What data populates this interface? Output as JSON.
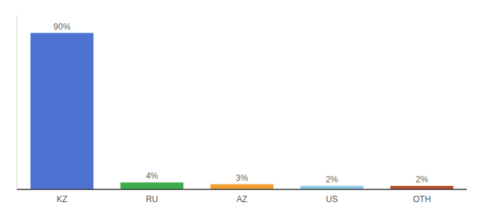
{
  "chart_data": {
    "type": "bar",
    "categories": [
      "KZ",
      "RU",
      "AZ",
      "US",
      "OTH"
    ],
    "values": [
      90,
      4,
      3,
      2,
      2
    ],
    "value_labels": [
      "90%",
      "4%",
      "3%",
      "2%",
      "2%"
    ],
    "colors": [
      "#4d72d1",
      "#3daa4c",
      "#f0a030",
      "#90cbe8",
      "#b5522b"
    ],
    "ylim": [
      0,
      100
    ],
    "grid": false,
    "data_labels": true,
    "tick_labels": "x"
  }
}
